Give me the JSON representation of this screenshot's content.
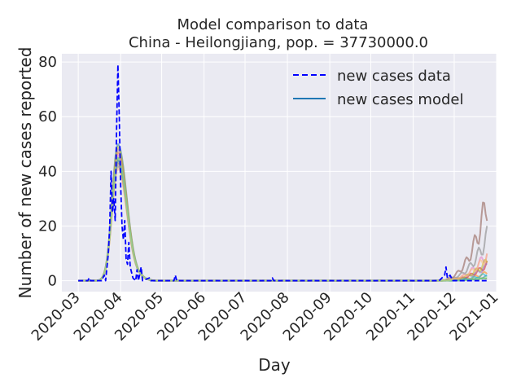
{
  "chart_data": {
    "type": "line",
    "title_line1": "Model comparison to data",
    "title_line2": "China - Heilongjiang, pop. = 37730000.0",
    "xlabel": "Day",
    "ylabel": "Number of new cases reported",
    "xlim": [
      "2020-02-18",
      "2021-01-01"
    ],
    "ylim": [
      -4,
      83
    ],
    "x_ticks": [
      "2020-03",
      "2020-04",
      "2020-05",
      "2020-06",
      "2020-07",
      "2020-08",
      "2020-09",
      "2020-10",
      "2020-11",
      "2020-12",
      "2021-01"
    ],
    "y_ticks": [
      0,
      20,
      40,
      60,
      80
    ],
    "grid": true,
    "legend_position": "top-right",
    "legend": [
      {
        "label": "new cases data",
        "style": "dashed",
        "color": "#0000ff"
      },
      {
        "label": "new cases model",
        "style": "solid",
        "color": "#1f77b4"
      }
    ],
    "data_series": {
      "name": "new cases data",
      "color": "#0000ff",
      "points": [
        [
          "2020-03-01",
          0
        ],
        [
          "2020-03-05",
          0
        ],
        [
          "2020-03-08",
          0
        ],
        [
          "2020-03-09",
          1
        ],
        [
          "2020-03-10",
          0
        ],
        [
          "2020-03-18",
          0
        ],
        [
          "2020-03-20",
          2
        ],
        [
          "2020-03-21",
          0
        ],
        [
          "2020-03-22",
          5
        ],
        [
          "2020-03-23",
          10
        ],
        [
          "2020-03-24",
          20
        ],
        [
          "2020-03-25",
          40
        ],
        [
          "2020-03-26",
          25
        ],
        [
          "2020-03-27",
          30
        ],
        [
          "2020-03-28",
          22
        ],
        [
          "2020-03-29",
          55
        ],
        [
          "2020-03-30",
          79
        ],
        [
          "2020-03-31",
          60
        ],
        [
          "2020-04-01",
          35
        ],
        [
          "2020-04-02",
          20
        ],
        [
          "2020-04-03",
          15
        ],
        [
          "2020-04-04",
          22
        ],
        [
          "2020-04-05",
          8
        ],
        [
          "2020-04-06",
          6
        ],
        [
          "2020-04-07",
          14
        ],
        [
          "2020-04-08",
          5
        ],
        [
          "2020-04-09",
          3
        ],
        [
          "2020-04-10",
          1
        ],
        [
          "2020-04-12",
          0
        ],
        [
          "2020-04-13",
          4
        ],
        [
          "2020-04-14",
          0
        ],
        [
          "2020-04-16",
          5
        ],
        [
          "2020-04-17",
          0
        ],
        [
          "2020-04-22",
          1
        ],
        [
          "2020-04-23",
          0
        ],
        [
          "2020-05-10",
          0
        ],
        [
          "2020-05-11",
          2
        ],
        [
          "2020-05-12",
          0
        ],
        [
          "2020-07-20",
          0
        ],
        [
          "2020-07-21",
          1
        ],
        [
          "2020-07-22",
          0
        ],
        [
          "2020-11-20",
          0
        ],
        [
          "2020-11-22",
          1
        ],
        [
          "2020-11-24",
          2
        ],
        [
          "2020-11-25",
          5
        ],
        [
          "2020-11-26",
          1
        ],
        [
          "2020-11-28",
          2
        ],
        [
          "2020-11-30",
          0
        ],
        [
          "2020-12-25",
          0
        ]
      ]
    },
    "model_runs": [
      {
        "color": "#1f77b4",
        "peak": 50,
        "tail": 1.5
      },
      {
        "color": "#ff7f0e",
        "peak": 47,
        "tail": 3.0
      },
      {
        "color": "#2ca02c",
        "peak": 45,
        "tail": 1.0
      },
      {
        "color": "#d62728",
        "peak": 44,
        "tail": 6.0
      },
      {
        "color": "#9467bd",
        "peak": 48,
        "tail": 5.5
      },
      {
        "color": "#8c564b",
        "peak": 43,
        "tail": 29.0
      },
      {
        "color": "#e377c2",
        "peak": 46,
        "tail": 10.0
      },
      {
        "color": "#7f7f7f",
        "peak": 42,
        "tail": 16.0
      },
      {
        "color": "#bcbd22",
        "peak": 49,
        "tail": 7.0
      },
      {
        "color": "#17becf",
        "peak": 44,
        "tail": 2.5
      },
      {
        "color": "#ffbb78",
        "peak": 41,
        "tail": 9.0
      },
      {
        "color": "#98df8a",
        "peak": 45,
        "tail": 1.2
      }
    ]
  }
}
